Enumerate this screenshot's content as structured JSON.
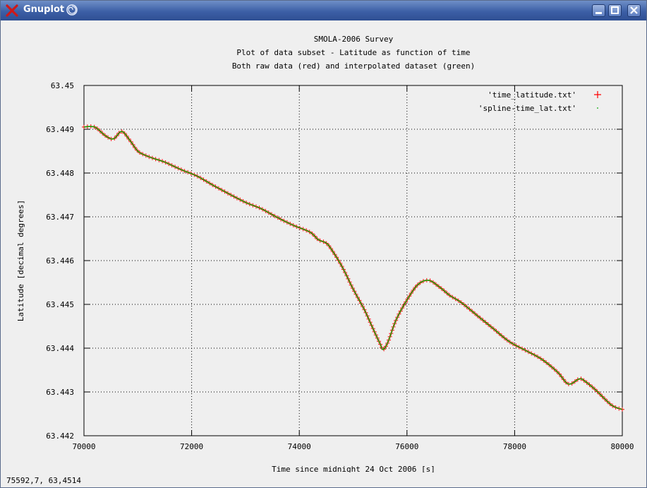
{
  "window": {
    "title": "Gnuplot",
    "icons": [
      "x-logo-icon",
      "swirl-icon",
      "minimize-icon",
      "maximize-icon",
      "close-icon"
    ]
  },
  "status_bar": {
    "coordinates": "75592,7,  63,4514"
  },
  "chart_data": {
    "type": "scatter",
    "title": [
      "SMOLA-2006 Survey",
      "Plot of data subset - Latitude as function of time",
      "Both raw data (red) and interpolated dataset (green)"
    ],
    "xlabel": "Time since midnight 24 Oct 2006 [s]",
    "ylabel": "Latitude [decimal degrees]",
    "xlim": [
      70000,
      80000
    ],
    "ylim": [
      63.442,
      63.45
    ],
    "xticks": [
      "70000",
      "72000",
      "74000",
      "76000",
      "78000",
      "80000"
    ],
    "yticks": [
      "63.442",
      "63.443",
      "63.444",
      "63.445",
      "63.446",
      "63.447",
      "63.448",
      "63.449",
      "63.45"
    ],
    "grid": true,
    "legend_position": "top-right",
    "series": [
      {
        "name": "'time_latitude.txt'",
        "color": "#ff0000",
        "marker": "+"
      },
      {
        "name": "'spline-time_lat.txt'",
        "color": "#00aa00",
        "marker": "dot"
      }
    ],
    "x": [
      70000,
      70200,
      70400,
      70550,
      70700,
      70850,
      71000,
      71150,
      71300,
      71500,
      71800,
      72100,
      72400,
      72700,
      73000,
      73300,
      73600,
      73900,
      74200,
      74350,
      74500,
      74600,
      74800,
      75000,
      75200,
      75350,
      75500,
      75560,
      75650,
      75800,
      76000,
      76200,
      76400,
      76600,
      76800,
      77000,
      77300,
      77600,
      77900,
      78200,
      78500,
      78800,
      79000,
      79200,
      79300,
      79500,
      79800,
      80000
    ],
    "y": [
      63.44905,
      63.44905,
      63.44885,
      63.44878,
      63.44895,
      63.44875,
      63.4485,
      63.4484,
      63.44833,
      63.44825,
      63.44808,
      63.44793,
      63.44772,
      63.44752,
      63.44733,
      63.44718,
      63.44698,
      63.4468,
      63.44665,
      63.44648,
      63.4464,
      63.44625,
      63.44585,
      63.44535,
      63.4449,
      63.4445,
      63.4441,
      63.44397,
      63.44415,
      63.44465,
      63.4451,
      63.44545,
      63.44555,
      63.4454,
      63.4452,
      63.44505,
      63.44475,
      63.44445,
      63.44415,
      63.44395,
      63.44375,
      63.44345,
      63.44318,
      63.4433,
      63.44325,
      63.44305,
      63.4427,
      63.4426
    ]
  }
}
